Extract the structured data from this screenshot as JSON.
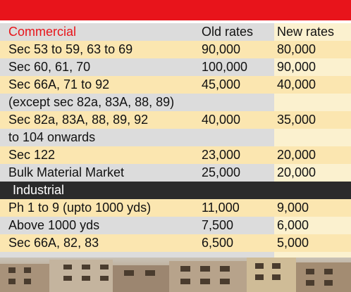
{
  "header": {
    "category": "Commercial",
    "col_old": "Old rates",
    "col_new": "New rates"
  },
  "commercial_rows": [
    {
      "area": "Sec 53 to 59, 63 to 69",
      "old": "90,000",
      "new": "80,000"
    },
    {
      "area": "Sec 60, 61, 70",
      "old": "100,000",
      "new": "90,000"
    },
    {
      "area": "Sec 66A, 71 to 92",
      "old": "45,000",
      "new": "40,000"
    },
    {
      "area": "(except sec 82a, 83A, 88, 89)",
      "old": "",
      "new": ""
    },
    {
      "area": "Sec 82a, 83A, 88, 89, 92",
      "old": "40,000",
      "new": "35,000"
    },
    {
      "area": "to 104 onwards",
      "old": "",
      "new": ""
    },
    {
      "area": "Sec 122",
      "old": "23,000",
      "new": "20,000"
    },
    {
      "area": "Bulk Material Market",
      "old": "25,000",
      "new": "20,000"
    }
  ],
  "industrial": {
    "title": "Industrial",
    "rows": [
      {
        "area": "Ph 1 to 9 (upto 1000 yds)",
        "old": "11,000",
        "new": "9,000"
      },
      {
        "area": "Above 1000 yds",
        "old": "7,500",
        "new": "6,000"
      },
      {
        "area": "Sec 66A, 82, 83",
        "old": "6,500",
        "new": "5,000"
      }
    ]
  },
  "colors": {
    "accent_red": "#e8141b",
    "highlight": "#fbe6b0",
    "new_col": "#fbf1cf",
    "base_gray": "#dcdcdc",
    "section_dark": "#2b2b2b"
  }
}
